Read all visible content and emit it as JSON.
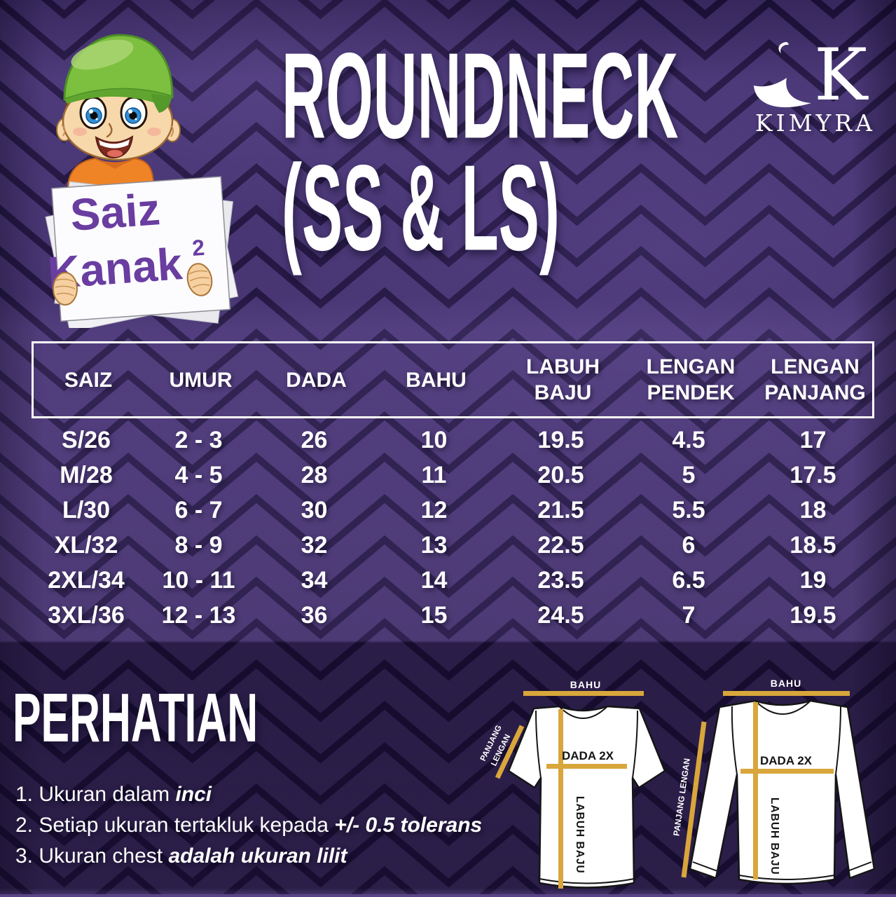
{
  "badge": {
    "line1": "Saiz",
    "line2": "Kanak",
    "sup": "2"
  },
  "title": {
    "line1": "ROUNDNECK",
    "line2": "(SS & LS)"
  },
  "logo": {
    "brand": "KIMYRA"
  },
  "size_table": {
    "headers": [
      [
        "SAIZ"
      ],
      [
        "UMUR"
      ],
      [
        "DADA"
      ],
      [
        "BAHU"
      ],
      [
        "LABUH",
        "BAJU"
      ],
      [
        "LENGAN",
        "PENDEK"
      ],
      [
        "LENGAN",
        "PANJANG"
      ]
    ],
    "rows": [
      [
        "S/26",
        "2 - 3",
        "26",
        "10",
        "19.5",
        "4.5",
        "17"
      ],
      [
        "M/28",
        "4 - 5",
        "28",
        "11",
        "20.5",
        "5",
        "17.5"
      ],
      [
        "L/30",
        "6 - 7",
        "30",
        "12",
        "21.5",
        "5.5",
        "18"
      ],
      [
        "XL/32",
        "8 - 9",
        "32",
        "13",
        "22.5",
        "6",
        "18.5"
      ],
      [
        "2XL/34",
        "10 - 11",
        "34",
        "14",
        "23.5",
        "6.5",
        "19"
      ],
      [
        "3XL/36",
        "12 - 13",
        "36",
        "15",
        "24.5",
        "7",
        "19.5"
      ]
    ]
  },
  "notice": {
    "heading": "PERHATIAN",
    "items": [
      {
        "prefix": "1. Ukuran dalam ",
        "emphasis": "inci"
      },
      {
        "prefix": "2. Setiap ukuran tertakluk kepada ",
        "emphasis": "+/- 0.5 tolerans"
      },
      {
        "prefix": "3. Ukuran chest ",
        "emphasis": "adalah ukuran lilit"
      }
    ]
  },
  "diagram_short": {
    "bahu": "BAHU",
    "dada": "DADA 2X",
    "labuh": "LABUH BAJU",
    "panjang_l1": "PANJANG",
    "panjang_l2": "LENGAN"
  },
  "diagram_long": {
    "bahu": "BAHU",
    "dada": "DADA 2X",
    "labuh": "LABUH BAJU",
    "panjang": "PANJANG LENGAN"
  },
  "colors": {
    "background_purple": "#3f2e63",
    "pattern_line": "#1c1138",
    "measure_gold": "#d9a63c",
    "badge_text_purple": "#6a3da0",
    "cap_green": "#7dbf3e",
    "shirt_orange": "#ef8427",
    "text_white": "#ffffff"
  }
}
